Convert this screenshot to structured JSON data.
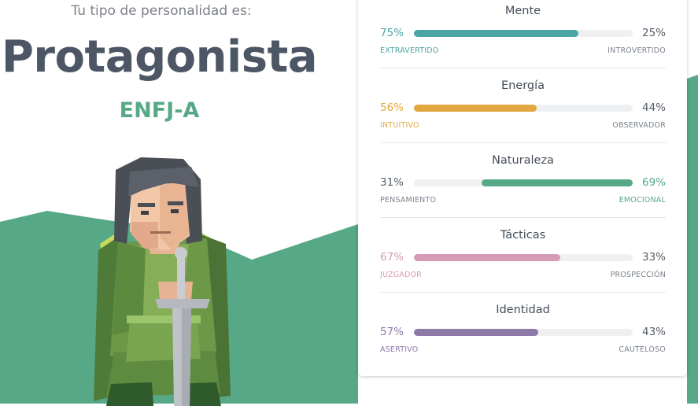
{
  "header": {
    "subtitle": "Tu tipo de personalidad es:",
    "type_name": "Protagonista",
    "type_code": "ENFJ-A"
  },
  "colors": {
    "hill": "#56a886",
    "title": "#4d5665",
    "code": "#56a886"
  },
  "traits": [
    {
      "title": "Mente",
      "left_pct": "75%",
      "right_pct": "25%",
      "left_label": "EXTRAVERTIDO",
      "right_label": "INTROVERTIDO",
      "value": 75,
      "dominant": "left",
      "color": "#4aa6a4"
    },
    {
      "title": "Energía",
      "left_pct": "56%",
      "right_pct": "44%",
      "left_label": "INTUITIVO",
      "right_label": "OBSERVADOR",
      "value": 56,
      "dominant": "left",
      "color": "#e2a740"
    },
    {
      "title": "Naturaleza",
      "left_pct": "31%",
      "right_pct": "69%",
      "left_label": "PENSAMIENTO",
      "right_label": "EMOCIONAL",
      "value": 69,
      "dominant": "right",
      "color": "#56a886"
    },
    {
      "title": "Tácticas",
      "left_pct": "67%",
      "right_pct": "33%",
      "left_label": "JUZGADOR",
      "right_label": "PROSPECCIÓN",
      "value": 67,
      "dominant": "left",
      "color": "#d59ab6"
    },
    {
      "title": "Identidad",
      "left_pct": "57%",
      "right_pct": "43%",
      "left_label": "ASERTIVO",
      "right_label": "CAUTELOSO",
      "value": 57,
      "dominant": "left",
      "color": "#8e7aa8"
    }
  ]
}
